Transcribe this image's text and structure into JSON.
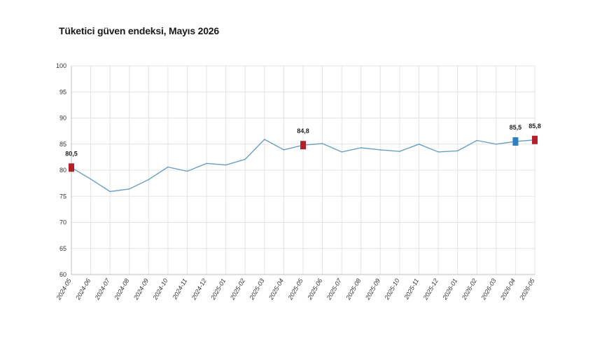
{
  "title": "Tüketici güven endeksi, Mayıs 2026",
  "chart_data": {
    "type": "line",
    "title": "Tüketici güven endeksi, Mayıs 2026",
    "xlabel": "",
    "ylabel": "",
    "ylim": [
      60,
      100
    ],
    "yticks": [
      60,
      65,
      70,
      75,
      80,
      85,
      90,
      95,
      100
    ],
    "grid": true,
    "legend": "none",
    "categories": [
      "2024-05",
      "2024-06",
      "2024-07",
      "2024-08",
      "2024-09",
      "2024-10",
      "2024-11",
      "2024-12",
      "2025-01",
      "2025-02",
      "2025-03",
      "2025-04",
      "2025-05",
      "2025-06",
      "2025-07",
      "2025-08",
      "2025-09",
      "2025-10",
      "2025-11",
      "2025-12",
      "2026-01",
      "2026-02",
      "2026-03",
      "2026-04",
      "2026-05"
    ],
    "series": [
      {
        "values": [
          80.5,
          78.3,
          75.9,
          76.4,
          78.2,
          80.6,
          79.8,
          81.3,
          81.0,
          82.1,
          85.9,
          83.9,
          84.8,
          85.1,
          83.5,
          84.3,
          83.9,
          83.6,
          85.0,
          83.5,
          83.7,
          85.7,
          85.0,
          85.5,
          85.8
        ],
        "color": "#6a9fc4"
      }
    ],
    "highlights": [
      {
        "index": 0,
        "label": "80,5",
        "color": "#b3202a"
      },
      {
        "index": 12,
        "label": "84,8",
        "color": "#b3202a"
      },
      {
        "index": 23,
        "label": "85,5",
        "color": "#2f7fc1"
      },
      {
        "index": 24,
        "label": "85,8",
        "color": "#b3202a"
      }
    ],
    "gridColor": "#e4e4e4",
    "axisColor": "#bfbfbf"
  }
}
